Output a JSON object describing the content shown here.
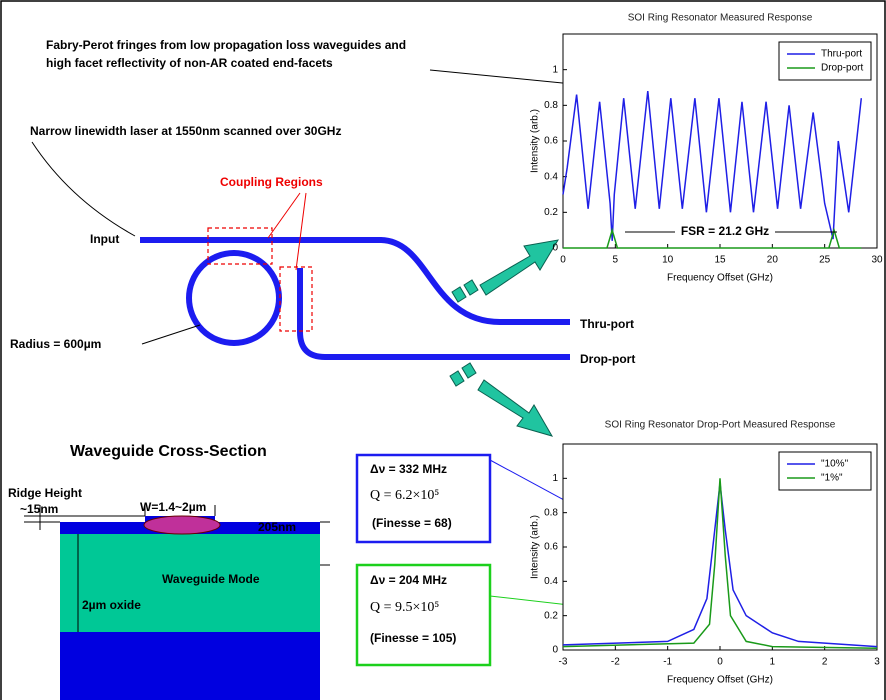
{
  "chart_data": [
    {
      "type": "line",
      "title": "SOI Ring Resonator Measured Response",
      "x_label": "Frequency Offset (GHz)",
      "y_label": "Intensity (arb.)",
      "xlim": [
        0,
        30
      ],
      "ylim": [
        0,
        1.2
      ],
      "xticks": [
        0,
        5,
        10,
        15,
        20,
        25,
        30
      ],
      "yticks": [
        0,
        0.2,
        0.4,
        0.6,
        0.8,
        1
      ],
      "legend": "upper right",
      "annotation": "FSR = 21.2 GHz",
      "series": [
        {
          "name": "Thru-port",
          "color": "#1f1fe6",
          "x": [
            0,
            0.4,
            1.3,
            2.4,
            3.5,
            4.5,
            4.7,
            4.9,
            5.8,
            6.9,
            8.1,
            9.2,
            10.3,
            11.4,
            12.6,
            13.7,
            14.9,
            16,
            17.1,
            18.2,
            19.4,
            20.5,
            21.6,
            22.7,
            23.9,
            25,
            25.8,
            26.3,
            27.3,
            28.5
          ],
          "values": [
            0.3,
            0.45,
            0.86,
            0.22,
            0.82,
            0.25,
            0.04,
            0.3,
            0.84,
            0.22,
            0.88,
            0.22,
            0.84,
            0.22,
            0.84,
            0.2,
            0.84,
            0.2,
            0.82,
            0.2,
            0.82,
            0.22,
            0.8,
            0.22,
            0.76,
            0.25,
            0.05,
            0.6,
            0.2,
            0.84
          ]
        },
        {
          "name": "Drop-port",
          "color": "#1a9a1a",
          "x": [
            0,
            4.2,
            4.7,
            5.2,
            25.4,
            25.9,
            26.4,
            28.5
          ],
          "values": [
            0,
            0,
            0.1,
            0,
            0,
            0.1,
            0,
            0
          ]
        }
      ]
    },
    {
      "type": "line",
      "title": "SOI Ring Resonator Drop-Port Measured Response",
      "x_label": "Frequency Offset (GHz)",
      "y_label": "Intensity (arb.)",
      "xlim": [
        -3,
        3
      ],
      "ylim": [
        0,
        1.2
      ],
      "xticks": [
        -3,
        -2,
        -1,
        0,
        1,
        2,
        3
      ],
      "yticks": [
        0,
        0.2,
        0.4,
        0.6,
        0.8,
        1
      ],
      "legend": "upper right",
      "series": [
        {
          "name": "\"10%\"",
          "color": "#1f1fe6",
          "x": [
            -3,
            -1,
            -0.5,
            -0.25,
            -0.1,
            0,
            0.1,
            0.25,
            0.5,
            1,
            1.5,
            3
          ],
          "values": [
            0.03,
            0.05,
            0.12,
            0.3,
            0.7,
            0.97,
            0.7,
            0.35,
            0.2,
            0.1,
            0.05,
            0.02
          ]
        },
        {
          "name": "\"1%\"",
          "color": "#1a9a1a",
          "x": [
            -3,
            -0.5,
            -0.2,
            -0.1,
            0,
            0.1,
            0.2,
            0.5,
            1,
            3
          ],
          "values": [
            0.02,
            0.04,
            0.15,
            0.5,
            1,
            0.55,
            0.2,
            0.05,
            0.02,
            0.01
          ]
        }
      ]
    }
  ],
  "fringe_note": [
    "Fabry-Perot fringes from low propagation loss waveguides and",
    "high facet reflectivity of non-AR coated end-facets"
  ],
  "laser_note": "Narrow linewidth laser at 1550nm scanned over 30GHz",
  "coupling_label": "Coupling Regions",
  "ports": {
    "input": "Input",
    "thru": "Thru-port",
    "drop": "Drop-port"
  },
  "radius_label": "Radius = 600µm",
  "cross_section": {
    "title": "Waveguide Cross-Section",
    "ridge_height": [
      "Ridge Height",
      "~15nm"
    ],
    "width": "W=1.4~2µm",
    "thickness": "205nm",
    "mode": "Waveguide Mode",
    "oxide": "2µm oxide"
  },
  "results": [
    {
      "linewidth": "Δν = 332 MHz",
      "q": "Q = 6.2×10⁵",
      "finesse": "(Finesse = 68)"
    },
    {
      "linewidth": "Δν = 204 MHz",
      "q": "Q = 9.5×10⁵",
      "finesse": "(Finesse = 105)"
    }
  ]
}
